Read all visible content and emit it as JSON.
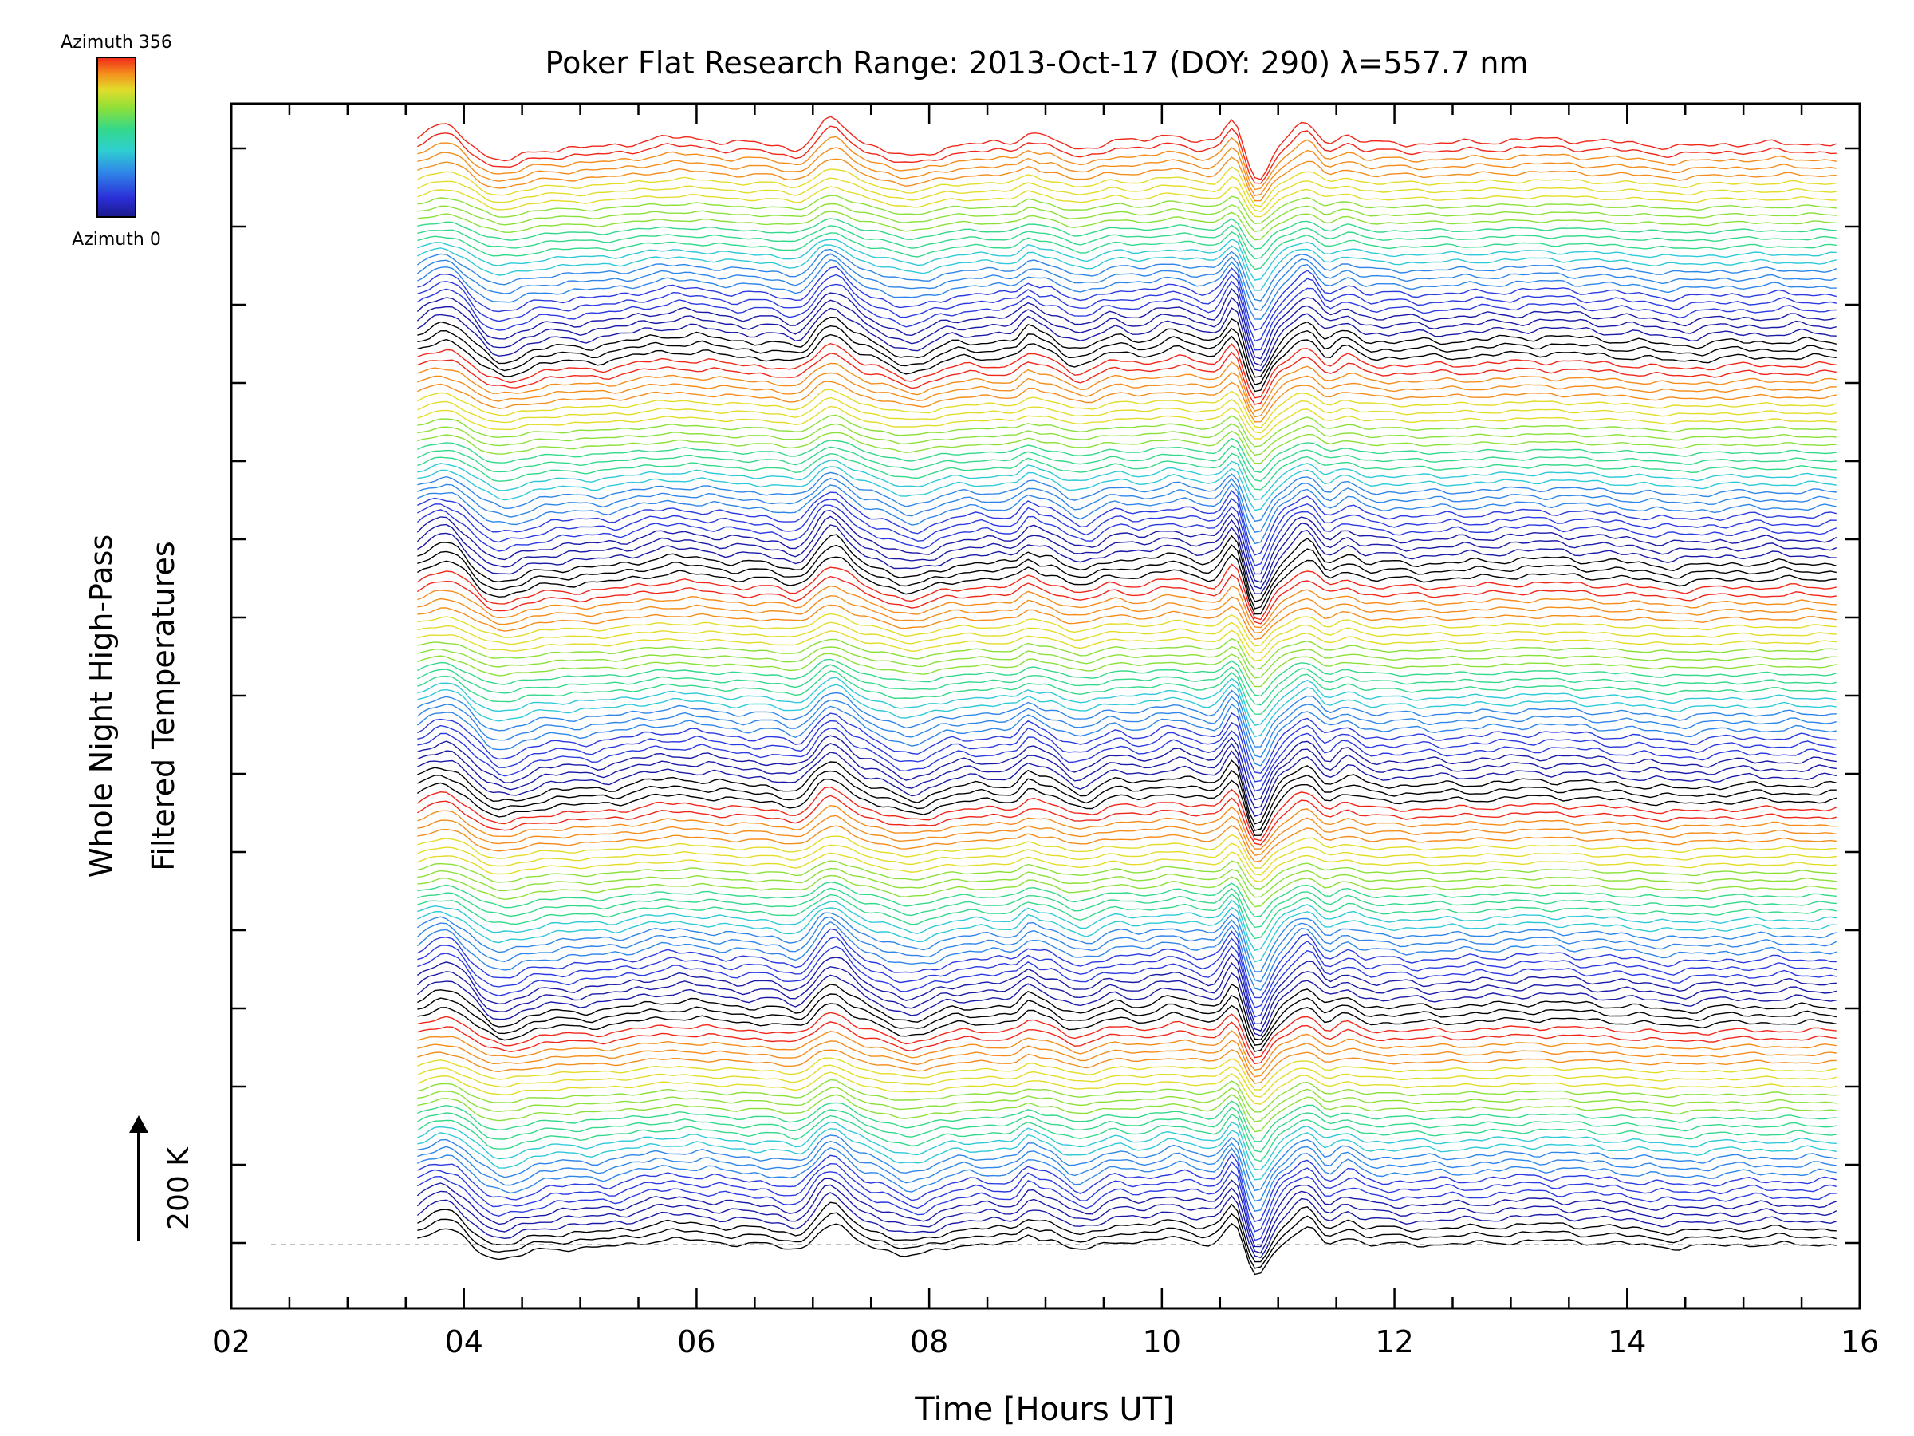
{
  "chart_data": {
    "type": "line",
    "title": "Poker Flat Research Range: 2013-Oct-17 (DOY: 290) λ=557.7 nm",
    "xlabel": "Time [Hours UT]",
    "ylabel_line1": "Whole Night High-Pass",
    "ylabel_line2": "Filtered Temperatures",
    "xlim": [
      2,
      16
    ],
    "x_ticks": [
      "02",
      "04",
      "06",
      "08",
      "10",
      "12",
      "14",
      "16"
    ],
    "x_minor_step_hours": 0.5,
    "y_minor_tick_count": 14,
    "scale_bar_label": "200 K",
    "colorbar": {
      "top_label": "Azimuth 356",
      "bottom_label": "Azimuth 0"
    },
    "colormap": [
      "#000000",
      "#1a1aa6",
      "#2b3be0",
      "#2f86e8",
      "#2fc9d8",
      "#34d88a",
      "#8be03a",
      "#e3dc2a",
      "#f58d1d",
      "#f0281a"
    ],
    "series_count": 140,
    "series_time_range": [
      3.6,
      15.8
    ],
    "baseline_style": "dashed gray line at lowest trace level",
    "notable_features": [
      {
        "time": 3.9,
        "description": "early-night positive bump"
      },
      {
        "time": 4.3,
        "description": "trough"
      },
      {
        "time": 7.2,
        "description": "sharp peak"
      },
      {
        "time": 7.9,
        "description": "trough"
      },
      {
        "time": 10.65,
        "description": "sharp peak"
      },
      {
        "time": 10.8,
        "description": "deep minimum (strongest event)"
      },
      {
        "time": 11.3,
        "description": "rebound peak"
      }
    ]
  }
}
